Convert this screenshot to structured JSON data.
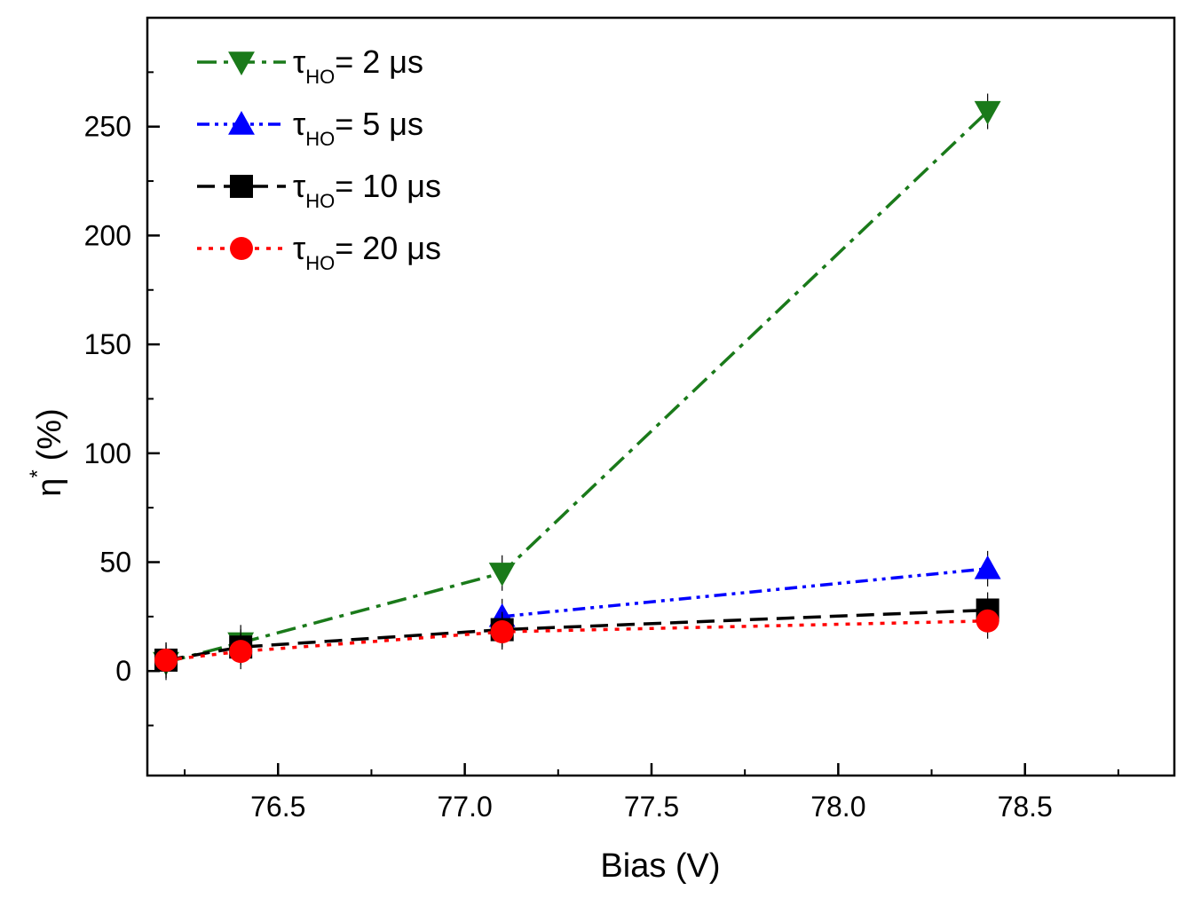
{
  "chart_data": {
    "type": "line",
    "title": "",
    "xlabel": "Bias (V)",
    "ylabel": {
      "symbol": "η",
      "superscript": "*",
      "unit": "(%)"
    },
    "xlim": [
      76.15,
      78.9
    ],
    "ylim": [
      -48,
      300
    ],
    "x_ticks": [
      {
        "value": 76.5,
        "label": "76.5"
      },
      {
        "value": 77.0,
        "label": "77.0"
      },
      {
        "value": 77.5,
        "label": "77.5"
      },
      {
        "value": 78.0,
        "label": "78.0"
      },
      {
        "value": 78.5,
        "label": "78.5"
      }
    ],
    "y_ticks": [
      {
        "value": 0,
        "label": "0"
      },
      {
        "value": 50,
        "label": "50"
      },
      {
        "value": 100,
        "label": "100"
      },
      {
        "value": 150,
        "label": "150"
      },
      {
        "value": 200,
        "label": "200"
      },
      {
        "value": 250,
        "label": "250"
      }
    ],
    "grid": false,
    "legend_position": "top-left",
    "series": [
      {
        "name": "τHO= 2 μs",
        "label_symbol": "τ",
        "label_sub": "HO",
        "label_rest": "= 2 μs",
        "color": "#1a7a1a",
        "marker": "triangle-down",
        "dash": "dash-dot",
        "x": [
          76.2,
          76.4,
          77.1,
          78.4
        ],
        "y": [
          4,
          13,
          45,
          257
        ]
      },
      {
        "name": "τHO= 5 μs",
        "label_symbol": "τ",
        "label_sub": "HO",
        "label_rest": "= 5 μs",
        "color": "#0000ff",
        "marker": "triangle-up",
        "dash": "dash-dot-dot",
        "x": [
          77.1,
          78.4
        ],
        "y": [
          25,
          47
        ]
      },
      {
        "name": "τHO= 10 μs",
        "label_symbol": "τ",
        "label_sub": "HO",
        "label_rest": "= 10 μs",
        "color": "#000000",
        "marker": "square",
        "dash": "dash",
        "x": [
          76.2,
          76.4,
          77.1,
          78.4
        ],
        "y": [
          5,
          11,
          19,
          28
        ]
      },
      {
        "name": "τHO= 20 μs",
        "label_symbol": "τ",
        "label_sub": "HO",
        "label_rest": "= 20 μs",
        "color": "#ff0000",
        "marker": "circle",
        "dash": "dot",
        "x": [
          76.2,
          76.4,
          77.1,
          78.4
        ],
        "y": [
          5,
          9,
          18,
          23
        ]
      }
    ]
  }
}
